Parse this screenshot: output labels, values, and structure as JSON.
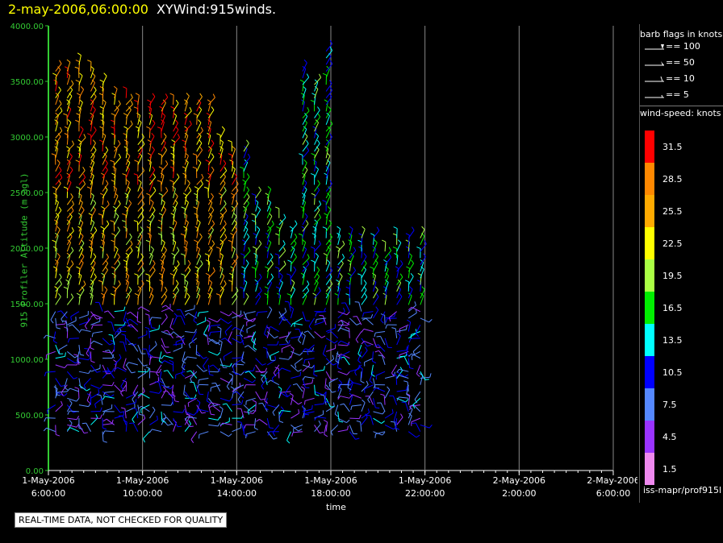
{
  "title": {
    "date": "2-may-2006,06:00:00",
    "name": "XYWind:915winds."
  },
  "legend": {
    "barb_title": "barb flags in knots",
    "barb_flags": [
      "== 100",
      "== 50",
      "== 10",
      "== 5"
    ],
    "speed_title": "wind-speed: knots",
    "speed_bins": [
      {
        "label": "31.5",
        "color": "#ff0000"
      },
      {
        "label": "28.5",
        "color": "#ff8800"
      },
      {
        "label": "25.5",
        "color": "#ffaa00"
      },
      {
        "label": "22.5",
        "color": "#ffff00"
      },
      {
        "label": "19.5",
        "color": "#aaff44"
      },
      {
        "label": "16.5",
        "color": "#00ee00"
      },
      {
        "label": "13.5",
        "color": "#00ffff"
      },
      {
        "label": "10.5",
        "color": "#0000ff"
      },
      {
        "label": "7.5",
        "color": "#5588ff"
      },
      {
        "label": "4.5",
        "color": "#9933ff"
      },
      {
        "label": "1.5",
        "color": "#ee88ee"
      }
    ],
    "source": "iss-mapr/prof915l"
  },
  "quality_note": "REAL-TIME DATA, NOT CHECKED FOR QUALITY",
  "chart_data": {
    "type": "scatter",
    "title": "XYWind:915winds.",
    "xlabel": "time",
    "ylabel": "915 Profiler Altitude (m agl)",
    "ylim": [
      0,
      4000
    ],
    "yticks": [
      "0.00",
      "500.00",
      "1000.00",
      "1500.00",
      "2000.00",
      "2500.00",
      "3000.00",
      "3500.00",
      "4000.00"
    ],
    "xticks": [
      [
        "1-May-2006",
        "6:00:00"
      ],
      [
        "1-May-2006",
        "10:00:00"
      ],
      [
        "1-May-2006",
        "14:00:00"
      ],
      [
        "1-May-2006",
        "18:00:00"
      ],
      [
        "1-May-2006",
        "22:00:00"
      ],
      [
        "2-May-2006",
        "2:00:00"
      ],
      [
        "2-May-2006",
        "6:00:00"
      ]
    ],
    "time_range_hours": [
      0,
      24
    ],
    "grid": true,
    "profiles": [
      {
        "hour": 0.3,
        "top": 3600
      },
      {
        "hour": 0.8,
        "top": 3600
      },
      {
        "hour": 1.3,
        "top": 3700
      },
      {
        "hour": 1.8,
        "top": 3600
      },
      {
        "hour": 2.3,
        "top": 3500
      },
      {
        "hour": 2.8,
        "top": 3400
      },
      {
        "hour": 3.3,
        "top": 3400
      },
      {
        "hour": 3.8,
        "top": 3300
      },
      {
        "hour": 4.3,
        "top": 3300
      },
      {
        "hour": 4.8,
        "top": 3300
      },
      {
        "hour": 5.3,
        "top": 3300
      },
      {
        "hour": 5.8,
        "top": 3300
      },
      {
        "hour": 6.3,
        "top": 3300
      },
      {
        "hour": 6.8,
        "top": 3300
      },
      {
        "hour": 7.3,
        "top": 3000
      },
      {
        "hour": 7.8,
        "top": 2900
      },
      {
        "hour": 8.3,
        "top": 2900
      },
      {
        "hour": 8.8,
        "top": 2500
      },
      {
        "hour": 9.3,
        "top": 2500
      },
      {
        "hour": 9.8,
        "top": 2300
      },
      {
        "hour": 10.3,
        "top": 2200
      },
      {
        "hour": 10.8,
        "top": 3600
      },
      {
        "hour": 11.3,
        "top": 3500
      },
      {
        "hour": 11.8,
        "top": 3800
      },
      {
        "hour": 12.3,
        "top": 2100
      },
      {
        "hour": 12.8,
        "top": 2100
      },
      {
        "hour": 13.3,
        "top": 2100
      },
      {
        "hour": 13.8,
        "top": 2100
      },
      {
        "hour": 14.3,
        "top": 2000
      },
      {
        "hour": 14.8,
        "top": 2100
      },
      {
        "hour": 15.3,
        "top": 2100
      },
      {
        "hour": 15.8,
        "top": 2100
      }
    ]
  }
}
